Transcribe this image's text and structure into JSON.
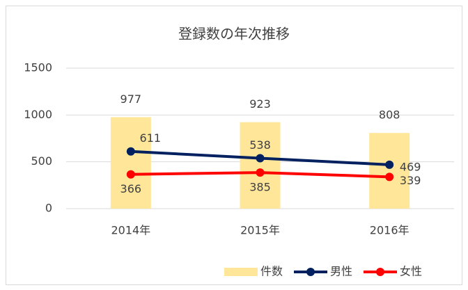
{
  "chart_data": {
    "type": "combo",
    "title": "登録数の年次推移",
    "categories": [
      "2014年",
      "2015年",
      "2016年"
    ],
    "series": [
      {
        "name": "件数",
        "type": "bar",
        "color": "#ffe699",
        "values": [
          977,
          923,
          808
        ]
      },
      {
        "name": "男性",
        "type": "line",
        "color": "#002060",
        "values": [
          611,
          538,
          469
        ]
      },
      {
        "name": "女性",
        "type": "line",
        "color": "#ff0000",
        "values": [
          366,
          385,
          339
        ]
      }
    ],
    "ylim": [
      0,
      1500
    ],
    "yticks": [
      0,
      500,
      1000,
      1500
    ],
    "grid": true,
    "legend": "bottom-right"
  }
}
